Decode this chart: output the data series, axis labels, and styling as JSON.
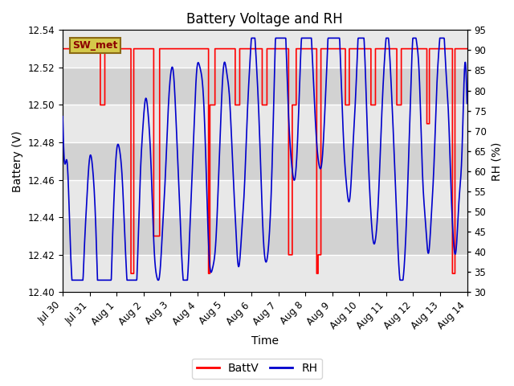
{
  "title": "Battery Voltage and RH",
  "xlabel": "Time",
  "ylabel_left": "Battery (V)",
  "ylabel_right": "RH (%)",
  "ylim_left": [
    12.4,
    12.54
  ],
  "ylim_right": [
    30,
    95
  ],
  "yticks_left": [
    12.4,
    12.42,
    12.44,
    12.46,
    12.48,
    12.5,
    12.52,
    12.54
  ],
  "yticks_right": [
    30,
    35,
    40,
    45,
    50,
    55,
    60,
    65,
    70,
    75,
    80,
    85,
    90,
    95
  ],
  "xtick_labels": [
    "Jul 30",
    "Jul 31",
    "Aug 1",
    "Aug 2",
    "Aug 3",
    "Aug 4",
    "Aug 5",
    "Aug 6",
    "Aug 7",
    "Aug 8",
    "Aug 9",
    "Aug 10",
    "Aug 11",
    "Aug 12",
    "Aug 13",
    "Aug 14"
  ],
  "annotation_text": "SW_met",
  "batt_color": "#ff0000",
  "rh_color": "#0000cc",
  "legend_entries": [
    "BattV",
    "RH"
  ],
  "band_colors": [
    "#e8e8e8",
    "#d0d0d0"
  ],
  "title_fontsize": 12,
  "label_fontsize": 10,
  "tick_fontsize": 8.5,
  "n_days": 15,
  "seed": 42
}
